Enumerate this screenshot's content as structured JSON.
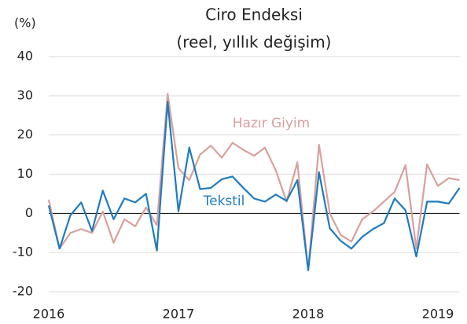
{
  "chart_data": {
    "type": "line",
    "title": "Ciro Endeksi",
    "subtitle": "(reel, yıllık değişim)",
    "y_label": "(%)",
    "categories": [
      "2016",
      null,
      null,
      null,
      null,
      null,
      null,
      null,
      null,
      null,
      null,
      null,
      "2017",
      null,
      null,
      null,
      null,
      null,
      null,
      null,
      null,
      null,
      null,
      null,
      "2018",
      null,
      null,
      null,
      null,
      null,
      null,
      null,
      null,
      null,
      null,
      null,
      "2019",
      null,
      null
    ],
    "series": [
      {
        "name": "Hazır Giyim",
        "color": "#d9a09c",
        "values": [
          3.5,
          -9,
          -5,
          -4,
          -5,
          0.5,
          -7.5,
          -1.5,
          -3.3,
          1.5,
          -3,
          30.5,
          11.5,
          8.5,
          15,
          17.3,
          14.2,
          18,
          16.2,
          14.7,
          16.8,
          11,
          3,
          13,
          -14.5,
          17.5,
          0,
          -5.5,
          -7.2,
          -1.5,
          0.5,
          3,
          5.5,
          12.3,
          -9,
          12.5,
          7,
          9,
          8.5
        ]
      },
      {
        "name": "Tekstil",
        "color": "#1f7bbf",
        "values": [
          2,
          -9,
          -0.5,
          2.8,
          -4.5,
          5.8,
          -1.5,
          3.8,
          2.8,
          5,
          -9.5,
          28.5,
          0.5,
          16.8,
          6.2,
          6.5,
          8.7,
          9.4,
          6.5,
          3.8,
          3,
          4.8,
          3.2,
          8.5,
          -14.5,
          10.5,
          -3.8,
          -7,
          -9,
          -6,
          -4,
          -2.5,
          3.8,
          0.8,
          -11,
          3,
          3,
          2.5,
          6.5
        ]
      }
    ],
    "ylim": [
      -20,
      40
    ],
    "yticks": [
      -20,
      -10,
      0,
      10,
      20,
      30,
      40
    ],
    "grid": true
  }
}
